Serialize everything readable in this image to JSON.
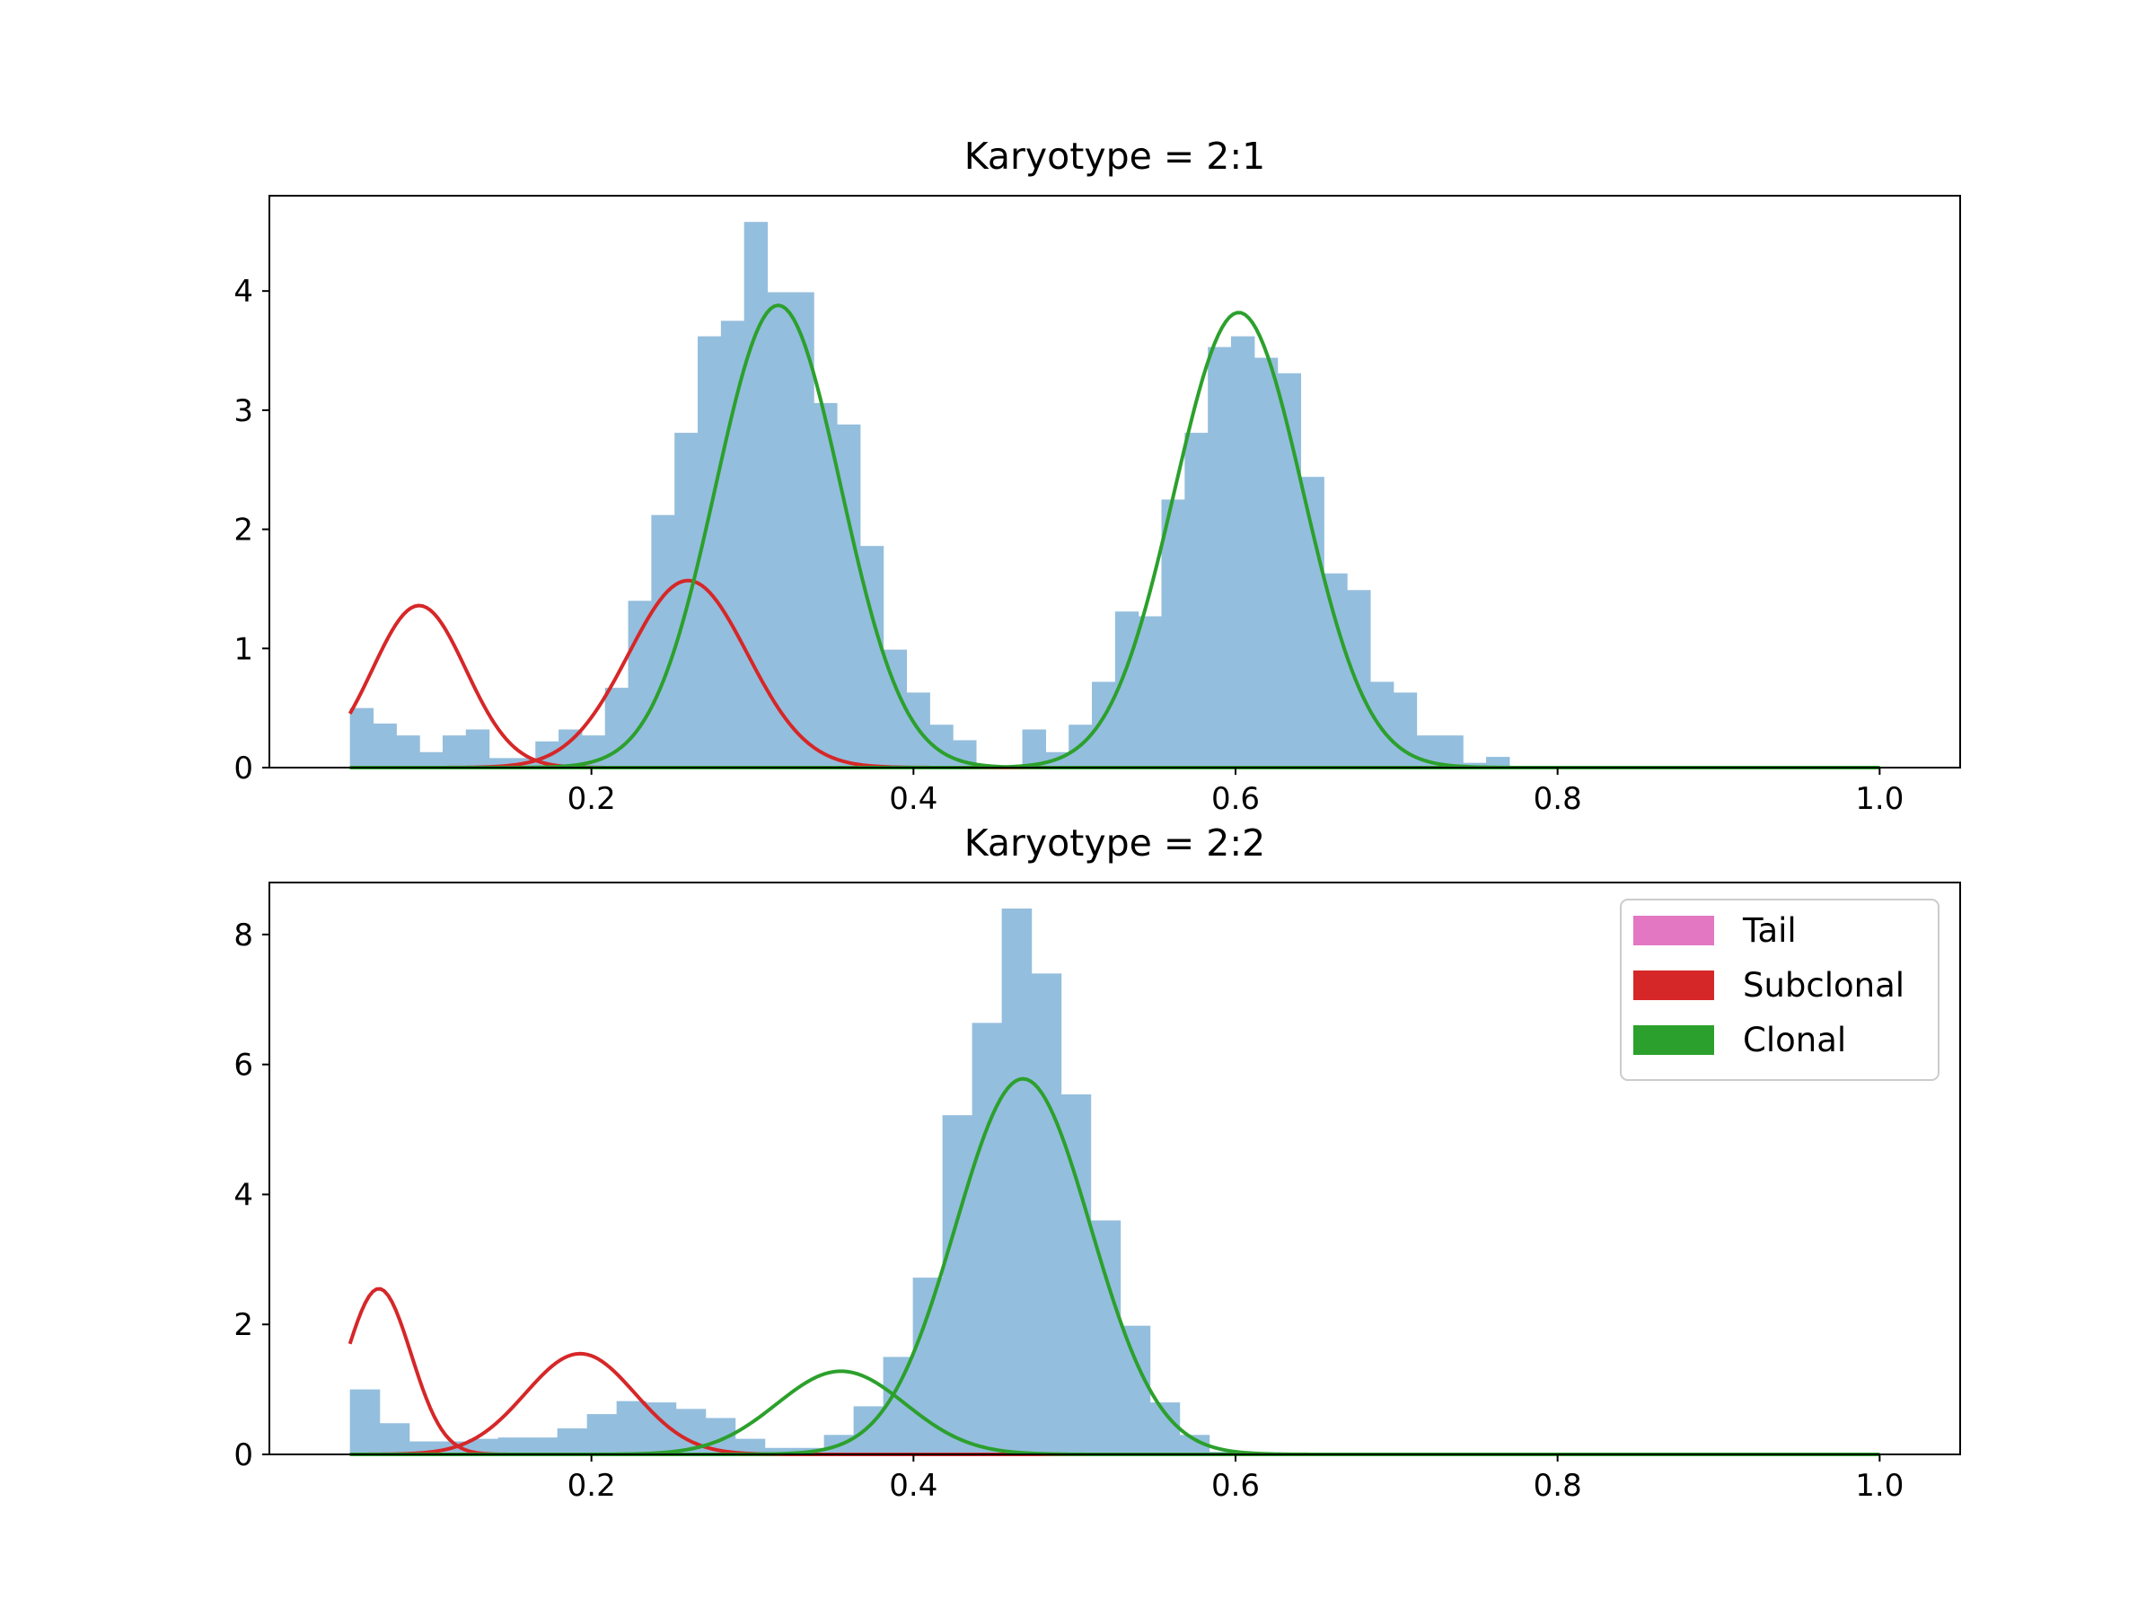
{
  "chart_data": [
    {
      "type": "bar",
      "title": "Karyotype = 2:1",
      "xlabel": "",
      "ylabel": "",
      "xlim": [
        0.0,
        1.05
      ],
      "ylim": [
        0,
        4.8
      ],
      "xticks": [
        0.2,
        0.4,
        0.6,
        0.8,
        1.0
      ],
      "xtick_labels": [
        "0.2",
        "0.4",
        "0.6",
        "0.8",
        "1.0"
      ],
      "yticks": [
        0,
        1,
        2,
        3,
        4
      ],
      "ytick_labels": [
        "0",
        "1",
        "2",
        "3",
        "4"
      ],
      "grid": false,
      "histogram": {
        "name": "",
        "color": "#94bedd",
        "bins_start": 0.05,
        "bin_width": 0.0144,
        "values": [
          0.5,
          0.37,
          0.27,
          0.13,
          0.27,
          0.32,
          0.08,
          0.08,
          0.22,
          0.32,
          0.27,
          0.67,
          1.4,
          2.12,
          2.81,
          3.62,
          3.75,
          4.58,
          3.99,
          3.99,
          3.06,
          2.88,
          1.86,
          0.99,
          0.63,
          0.36,
          0.23,
          0.0,
          0.0,
          0.32,
          0.13,
          0.36,
          0.72,
          1.31,
          1.27,
          2.25,
          2.81,
          3.53,
          3.62,
          3.44,
          3.31,
          2.44,
          1.63,
          1.49,
          0.72,
          0.63,
          0.27,
          0.27,
          0.04,
          0.09
        ]
      },
      "series": [
        {
          "name": "",
          "color": "#d62728",
          "components": [
            {
              "mean": 0.093,
              "sd": 0.029,
              "peak": 1.36
            },
            {
              "mean": 0.26,
              "sd": 0.037,
              "peak": 1.57
            }
          ]
        },
        {
          "name": "",
          "color": "#2ca02c",
          "components": [
            {
              "mean": 0.316,
              "sd": 0.039,
              "peak": 3.88
            },
            {
              "mean": 0.602,
              "sd": 0.04,
              "peak": 3.82
            }
          ]
        }
      ],
      "curve_x_range": [
        0.05,
        1.0
      ]
    },
    {
      "type": "bar",
      "title": "Karyotype = 2:2",
      "xlabel": "",
      "ylabel": "",
      "xlim": [
        0.0,
        1.05
      ],
      "ylim": [
        0,
        8.8
      ],
      "xticks": [
        0.2,
        0.4,
        0.6,
        0.8,
        1.0
      ],
      "xtick_labels": [
        "0.2",
        "0.4",
        "0.6",
        "0.8",
        "1.0"
      ],
      "yticks": [
        0,
        2,
        4,
        6,
        8
      ],
      "ytick_labels": [
        "0",
        "2",
        "4",
        "6",
        "8"
      ],
      "grid": false,
      "legend": {
        "placement": "top-right",
        "entries": [
          {
            "label": "Tail",
            "color": "#e377c2"
          },
          {
            "label": "Subclonal",
            "color": "#d62728"
          },
          {
            "label": "Clonal",
            "color": "#2ca02c"
          }
        ]
      },
      "histogram": {
        "name": "",
        "color": "#94bedd",
        "bins_start": 0.05,
        "bin_width": 0.0184,
        "values": [
          1.0,
          0.48,
          0.2,
          0.2,
          0.24,
          0.26,
          0.26,
          0.4,
          0.62,
          0.82,
          0.8,
          0.7,
          0.56,
          0.24,
          0.1,
          0.1,
          0.3,
          0.74,
          1.5,
          2.72,
          5.22,
          6.64,
          8.4,
          7.4,
          5.54,
          3.6,
          1.98,
          0.8,
          0.3,
          0.04,
          0.0
        ]
      },
      "series": [
        {
          "name": "Subclonal",
          "color": "#d62728",
          "components": [
            {
              "mean": 0.068,
              "sd": 0.02,
              "peak": 2.55
            },
            {
              "mean": 0.193,
              "sd": 0.034,
              "peak": 1.55
            }
          ]
        },
        {
          "name": "Clonal",
          "color": "#2ca02c",
          "components": [
            {
              "mean": 0.355,
              "sd": 0.04,
              "peak": 1.28
            },
            {
              "mean": 0.468,
              "sd": 0.042,
              "peak": 5.78
            }
          ]
        },
        {
          "name": "Tail",
          "color": "#e377c2",
          "components": []
        }
      ],
      "curve_x_range": [
        0.05,
        1.0
      ]
    }
  ]
}
